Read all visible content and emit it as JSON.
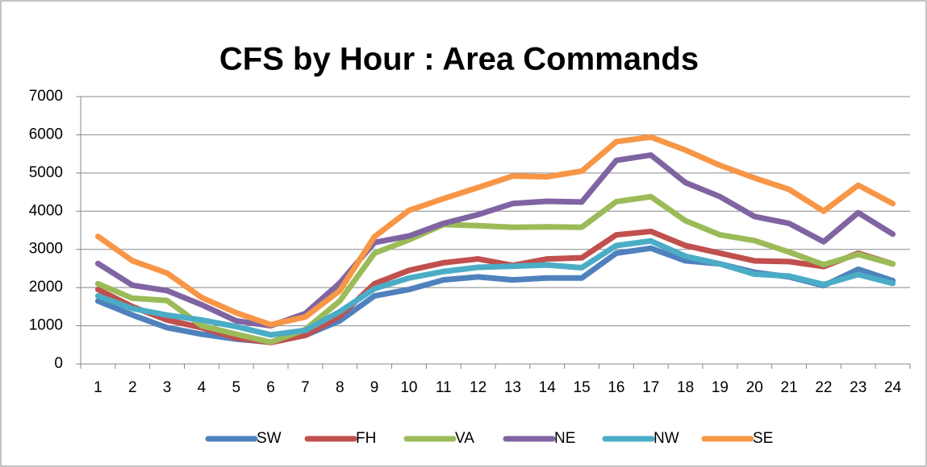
{
  "chart_data": {
    "type": "line",
    "title": "CFS by Hour : Area Commands",
    "categories": [
      1,
      2,
      3,
      4,
      5,
      6,
      7,
      8,
      9,
      10,
      11,
      12,
      13,
      14,
      15,
      16,
      17,
      18,
      19,
      20,
      21,
      22,
      23,
      24
    ],
    "series": [
      {
        "name": "SW",
        "color": "#4F81BD",
        "values": [
          1650,
          1280,
          950,
          780,
          650,
          570,
          750,
          1130,
          1780,
          1950,
          2200,
          2280,
          2200,
          2250,
          2250,
          2900,
          3030,
          2700,
          2620,
          2400,
          2280,
          2050,
          2480,
          2180
        ]
      },
      {
        "name": "FH",
        "color": "#C0504D",
        "values": [
          1950,
          1500,
          1150,
          950,
          680,
          560,
          750,
          1250,
          2100,
          2450,
          2650,
          2750,
          2580,
          2750,
          2780,
          3380,
          3470,
          3100,
          2900,
          2700,
          2680,
          2550,
          2900,
          2620
        ]
      },
      {
        "name": "VA",
        "color": "#9BBB59",
        "values": [
          2100,
          1720,
          1660,
          1000,
          780,
          570,
          900,
          1650,
          2900,
          3250,
          3650,
          3620,
          3580,
          3590,
          3580,
          4250,
          4380,
          3750,
          3380,
          3230,
          2930,
          2600,
          2870,
          2620
        ]
      },
      {
        "name": "NE",
        "color": "#8064A2",
        "values": [
          2630,
          2060,
          1920,
          1550,
          1130,
          1000,
          1320,
          2120,
          3180,
          3350,
          3680,
          3910,
          4200,
          4260,
          4240,
          5330,
          5470,
          4750,
          4380,
          3860,
          3680,
          3200,
          3960,
          3400
        ]
      },
      {
        "name": "NW",
        "color": "#4BACC6",
        "values": [
          1780,
          1450,
          1280,
          1150,
          980,
          760,
          880,
          1370,
          1970,
          2250,
          2420,
          2530,
          2560,
          2590,
          2520,
          3100,
          3220,
          2820,
          2620,
          2350,
          2300,
          2080,
          2340,
          2110
        ]
      },
      {
        "name": "SE",
        "color": "#F79646",
        "values": [
          3340,
          2700,
          2380,
          1740,
          1340,
          1030,
          1230,
          1920,
          3330,
          4020,
          4330,
          4620,
          4920,
          4900,
          5050,
          5820,
          5940,
          5600,
          5200,
          4870,
          4570,
          4000,
          4680,
          4200
        ]
      }
    ],
    "ylim": [
      0,
      7000
    ],
    "yticks": [
      0,
      1000,
      2000,
      3000,
      4000,
      5000,
      6000,
      7000
    ],
    "grid": true,
    "legend": "bottom"
  }
}
